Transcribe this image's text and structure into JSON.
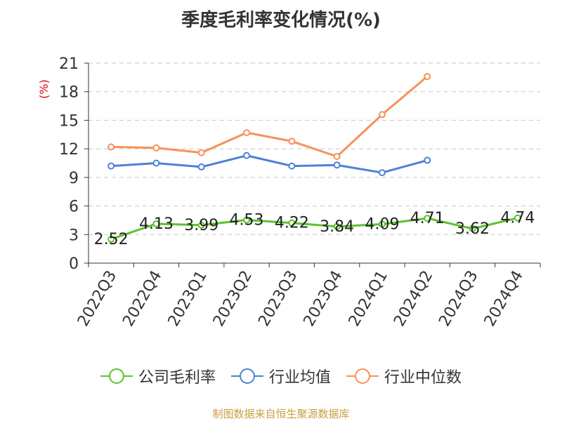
{
  "title": "季度毛利率变化情况(%)",
  "source_note": "制图数据来自恒生聚源数据库",
  "chart_data": {
    "type": "line",
    "title": "季度毛利率变化情况(%)",
    "ylabel": "(%)",
    "xlabel": "",
    "ylim": [
      0,
      21
    ],
    "yticks": [
      0,
      3,
      6,
      9,
      12,
      15,
      18,
      21
    ],
    "grid": true,
    "legend_position": "bottom",
    "categories": [
      "2022Q3",
      "2022Q4",
      "2023Q1",
      "2023Q2",
      "2023Q3",
      "2023Q4",
      "2024Q1",
      "2024Q2",
      "2024Q3",
      "2024Q4"
    ],
    "series": [
      {
        "name": "公司毛利率",
        "color": "#5cc22c",
        "values": [
          2.52,
          4.13,
          3.99,
          4.53,
          4.22,
          3.84,
          4.09,
          4.71,
          3.62,
          4.74
        ],
        "value_labels": [
          "2.52",
          "4.13",
          "3.99",
          "4.53",
          "4.22",
          "3.84",
          "4.09",
          "4.71",
          "3.62",
          "4.74"
        ]
      },
      {
        "name": "行业均值",
        "color": "#4d80d8",
        "values": [
          10.2,
          10.5,
          10.1,
          11.3,
          10.2,
          10.3,
          9.5,
          10.8,
          null,
          null
        ]
      },
      {
        "name": "行业中位数",
        "color": "#f5925a",
        "values": [
          12.2,
          12.1,
          11.6,
          13.7,
          12.8,
          11.2,
          15.6,
          19.6,
          null,
          null
        ]
      }
    ]
  }
}
